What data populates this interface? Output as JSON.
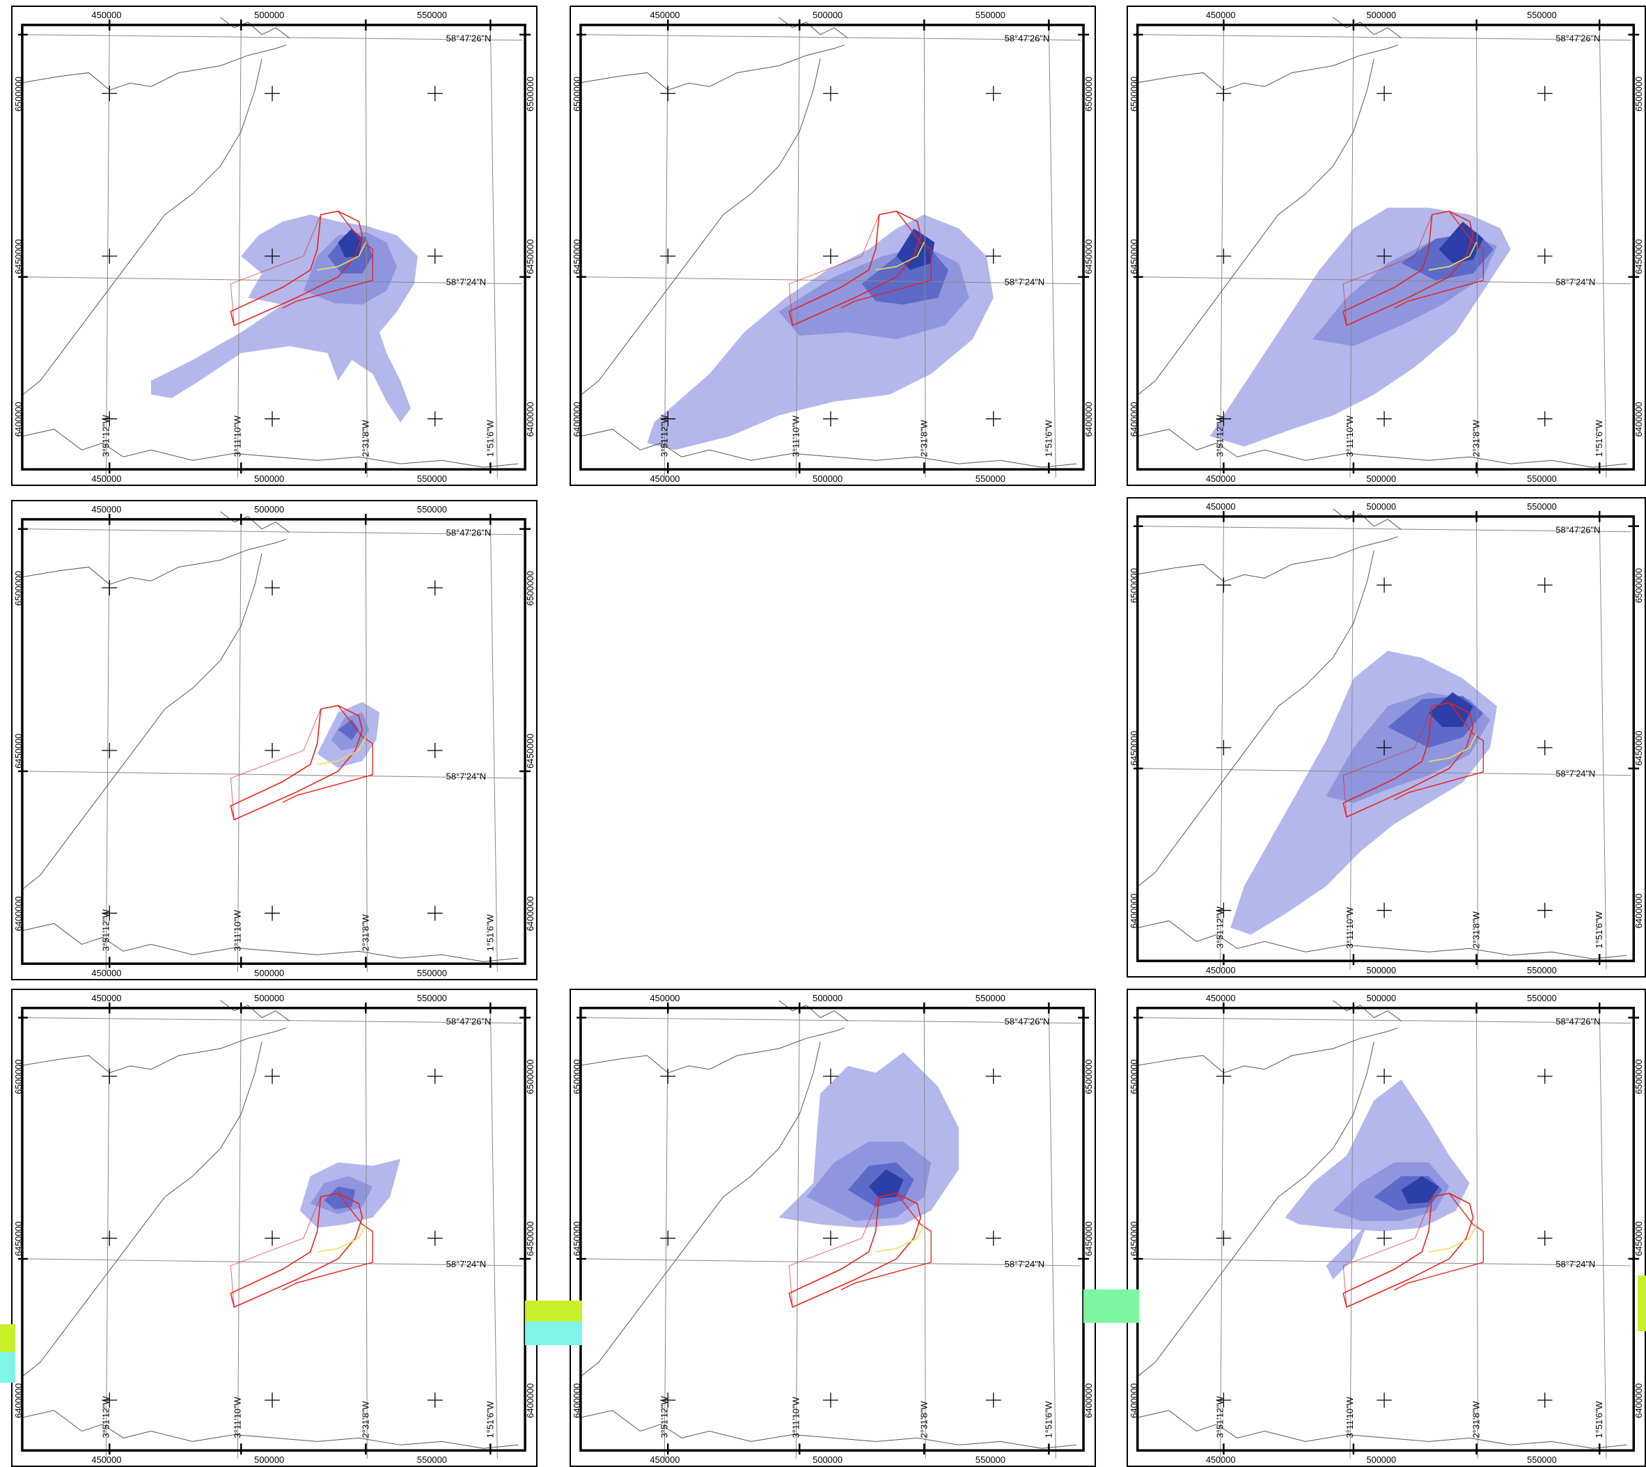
{
  "labels": {
    "grid_x": [
      "450000",
      "500000",
      "550000"
    ],
    "grid_y": [
      "6500000",
      "6450000",
      "6400000"
    ],
    "lat_top": "58°47'26\"N",
    "lat_mid": "58°7'24\"N",
    "lon": [
      "3°51'12\"W",
      "3°11'10\"W",
      "2°31'8\"W",
      "1°51'6\"W"
    ]
  },
  "colors": {
    "plume_light": "#b3b7ec",
    "plume_mid": "#8f96de",
    "plume_dark": "#5e6ac9",
    "plume_core": "#2c3ea8",
    "site_boundary": "#e8221c",
    "cable_route": "#e8e25a",
    "coastline": "#555555",
    "graticule": "#888888"
  },
  "panels": [
    {
      "id": "p1",
      "row": 1,
      "col": 1,
      "plume": "west-southwest"
    },
    {
      "id": "p2",
      "row": 1,
      "col": 2,
      "plume": "southwest-broad"
    },
    {
      "id": "p3",
      "row": 1,
      "col": 3,
      "plume": "southwest-along-coast"
    },
    {
      "id": "p4",
      "row": 2,
      "col": 1,
      "plume": "local"
    },
    {
      "id": "p5",
      "row": 2,
      "col": 3,
      "plume": "southwest-long"
    },
    {
      "id": "p6",
      "row": 3,
      "col": 1,
      "plume": "north-small"
    },
    {
      "id": "p7",
      "row": 3,
      "col": 2,
      "plume": "north-broad"
    },
    {
      "id": "p8",
      "row": 3,
      "col": 3,
      "plume": "northwest-medium"
    }
  ]
}
